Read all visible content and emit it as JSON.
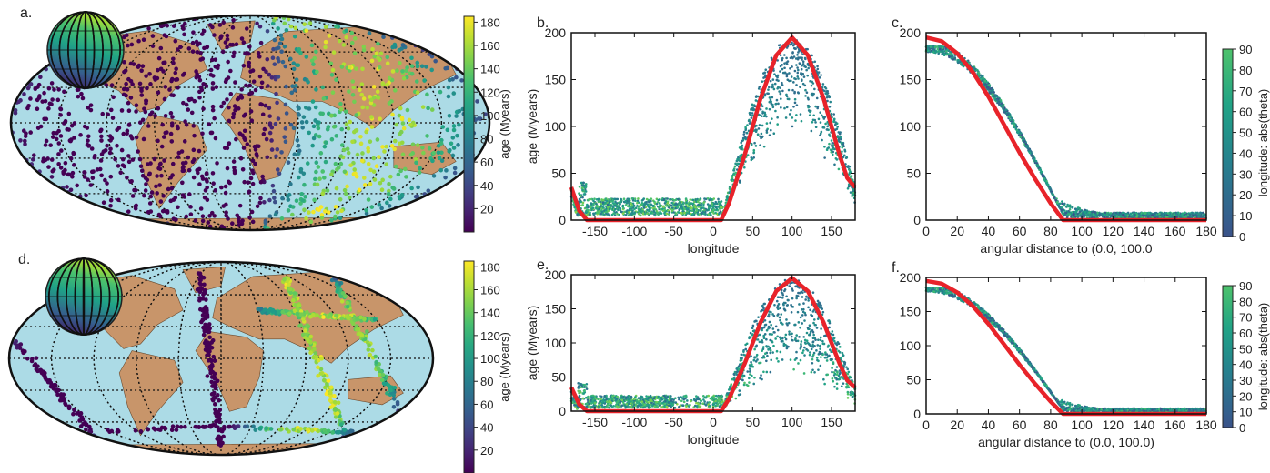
{
  "panels": {
    "a": "a.",
    "b": "b.",
    "c": "c.",
    "d": "d.",
    "e": "e.",
    "f": "f."
  },
  "colors": {
    "ocean": "#acdbe6",
    "land": "#c8956a",
    "fit_line": "#e8232a",
    "viridis": [
      "#440154",
      "#46327e",
      "#365c8d",
      "#277f8e",
      "#1fa187",
      "#4ac16d",
      "#a0da39",
      "#fde725"
    ]
  },
  "chart_data": [
    {
      "panel": "a",
      "type": "scatter",
      "title": "",
      "description_visible": "Mollweide world map with age-colored points",
      "colorbar": {
        "label": "age (Myears)",
        "ticks": [
          20,
          40,
          60,
          80,
          100,
          120,
          140,
          160,
          180
        ],
        "range": [
          0,
          185
        ]
      }
    },
    {
      "panel": "b",
      "type": "scatter",
      "xlabel": "longitude",
      "ylabel": "age (Myears)",
      "xlim": [
        -180,
        180
      ],
      "ylim": [
        0,
        200
      ],
      "xticks": [
        -150,
        -100,
        -50,
        0,
        50,
        100,
        150
      ],
      "yticks": [
        0,
        50,
        100,
        150,
        200
      ],
      "curve": {
        "x": [
          -180,
          -170,
          -160,
          -150,
          -100,
          -50,
          0,
          10,
          20,
          40,
          60,
          80,
          100,
          120,
          140,
          160,
          170,
          180
        ],
        "y": [
          35,
          10,
          0,
          0,
          0,
          0,
          0,
          0,
          18,
          70,
          130,
          176,
          195,
          176,
          130,
          70,
          45,
          35
        ]
      }
    },
    {
      "panel": "c",
      "type": "scatter",
      "xlabel": "angular distance to (0.0, 100.0",
      "ylabel": "",
      "xlim": [
        0,
        180
      ],
      "ylim": [
        0,
        200
      ],
      "xticks": [
        0,
        20,
        40,
        60,
        80,
        100,
        120,
        140,
        160,
        180
      ],
      "yticks": [
        0,
        50,
        100,
        150,
        200
      ],
      "curve": {
        "x": [
          0,
          10,
          20,
          30,
          40,
          50,
          60,
          70,
          80,
          88,
          90,
          180
        ],
        "y": [
          195,
          191,
          178,
          158,
          132,
          102,
          72,
          44,
          18,
          0,
          0,
          0
        ]
      },
      "colorbar": {
        "label": "longitude: abs(theta)",
        "ticks": [
          0,
          10,
          20,
          30,
          40,
          50,
          60,
          70,
          80,
          90
        ],
        "range": [
          0,
          90
        ]
      }
    },
    {
      "panel": "d",
      "type": "scatter",
      "title": "",
      "description_visible": "Mollweide world map with age-colored points along plate boundaries",
      "colorbar": {
        "label": "age (Myears)",
        "ticks": [
          20,
          40,
          60,
          80,
          100,
          120,
          140,
          160,
          180
        ],
        "range": [
          0,
          185
        ]
      }
    },
    {
      "panel": "e",
      "type": "scatter",
      "xlabel": "longitude",
      "ylabel": "age (Myears)",
      "xlim": [
        -180,
        180
      ],
      "ylim": [
        0,
        200
      ],
      "xticks": [
        -150,
        -100,
        -50,
        0,
        50,
        100,
        150
      ],
      "yticks": [
        0,
        50,
        100,
        150,
        200
      ],
      "curve": {
        "x": [
          -180,
          -170,
          -160,
          -150,
          -100,
          -50,
          0,
          10,
          20,
          40,
          60,
          80,
          100,
          120,
          140,
          160,
          170,
          180
        ],
        "y": [
          35,
          10,
          0,
          0,
          0,
          0,
          0,
          0,
          18,
          70,
          130,
          176,
          195,
          176,
          130,
          70,
          45,
          35
        ]
      }
    },
    {
      "panel": "f",
      "type": "scatter",
      "xlabel": "angular distance to (0.0, 100.0)",
      "ylabel": "",
      "xlim": [
        0,
        180
      ],
      "ylim": [
        0,
        200
      ],
      "xticks": [
        0,
        20,
        40,
        60,
        80,
        100,
        120,
        140,
        160,
        180
      ],
      "yticks": [
        0,
        50,
        100,
        150,
        200
      ],
      "curve": {
        "x": [
          0,
          10,
          20,
          30,
          40,
          50,
          60,
          70,
          80,
          88,
          90,
          180
        ],
        "y": [
          195,
          191,
          178,
          158,
          132,
          102,
          72,
          44,
          18,
          0,
          0,
          0
        ]
      },
      "colorbar": {
        "label": "longitude: abs(theta)",
        "ticks": [
          0,
          10,
          20,
          30,
          40,
          50,
          60,
          70,
          80,
          90
        ],
        "range": [
          0,
          90
        ]
      }
    }
  ]
}
